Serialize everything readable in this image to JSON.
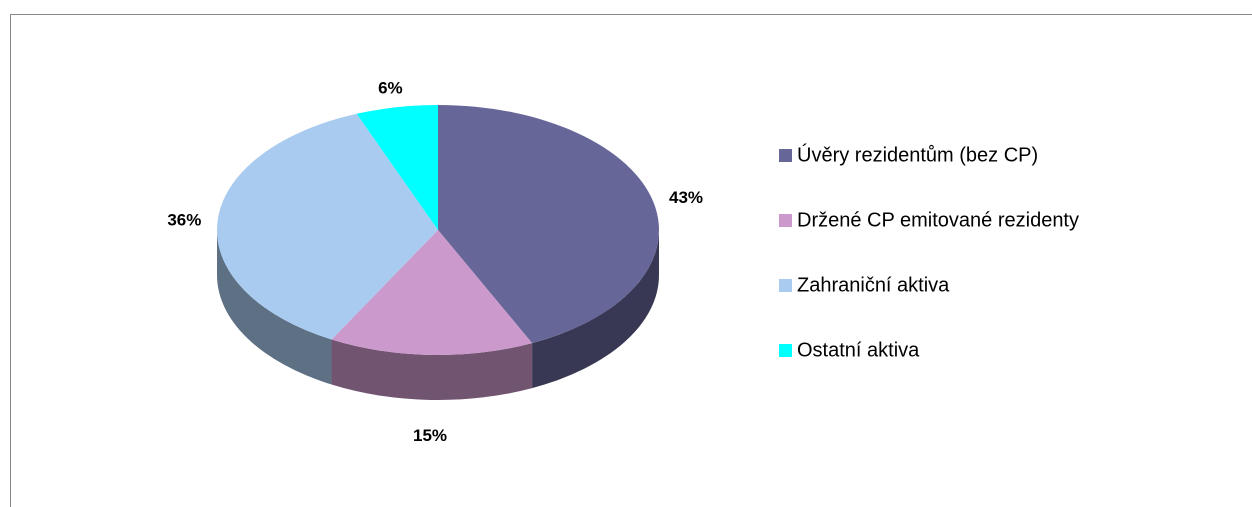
{
  "chart_data": {
    "type": "pie",
    "categories": [
      "Úvěry rezidentům (bez CP)",
      "Držené CP emitované rezidenty",
      "Zahraniční aktiva",
      "Ostatní aktiva"
    ],
    "values": [
      43,
      15,
      36,
      6
    ],
    "value_labels": [
      "43%",
      "15%",
      "36%",
      "6%"
    ],
    "colors": [
      "#666699",
      "#cc99cc",
      "#a9cbf0",
      "#00ffff"
    ],
    "legend": "right"
  }
}
